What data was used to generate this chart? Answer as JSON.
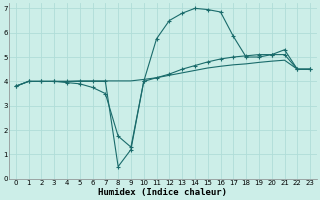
{
  "xlabel": "Humidex (Indice chaleur)",
  "bg_color": "#cceee8",
  "grid_color": "#b0ddd8",
  "line_color": "#1a6b6b",
  "xlim": [
    -0.5,
    23.5
  ],
  "ylim": [
    0,
    7.2
  ],
  "xticks": [
    0,
    1,
    2,
    3,
    4,
    5,
    6,
    7,
    8,
    9,
    10,
    11,
    12,
    13,
    14,
    15,
    16,
    17,
    18,
    19,
    20,
    21,
    22,
    23
  ],
  "yticks": [
    0,
    1,
    2,
    3,
    4,
    5,
    6,
    7
  ],
  "curve1_x": [
    0,
    1,
    2,
    3,
    4,
    5,
    6,
    7,
    8,
    9,
    10,
    11,
    12,
    13,
    14,
    15,
    16,
    17,
    18,
    19,
    20,
    21,
    22,
    23
  ],
  "curve1_y": [
    3.8,
    4.0,
    4.0,
    4.0,
    3.95,
    3.9,
    3.75,
    3.5,
    1.75,
    1.3,
    4.0,
    5.75,
    6.5,
    6.8,
    7.0,
    6.95,
    6.85,
    5.85,
    5.0,
    5.0,
    5.1,
    5.3,
    4.5,
    4.5
  ],
  "curve2_x": [
    0,
    1,
    2,
    3,
    4,
    5,
    6,
    7,
    8,
    9,
    10,
    11,
    12,
    13,
    14,
    15,
    16,
    17,
    18,
    19,
    20,
    21,
    22,
    23
  ],
  "curve2_y": [
    3.8,
    4.0,
    4.0,
    4.0,
    4.0,
    4.0,
    4.0,
    4.0,
    0.5,
    1.2,
    4.0,
    4.15,
    4.3,
    4.5,
    4.65,
    4.8,
    4.92,
    5.0,
    5.05,
    5.1,
    5.1,
    5.1,
    4.5,
    4.5
  ],
  "curve3_x": [
    0,
    1,
    2,
    3,
    4,
    5,
    6,
    7,
    8,
    9,
    10,
    11,
    12,
    13,
    14,
    15,
    16,
    17,
    18,
    19,
    20,
    21,
    22,
    23
  ],
  "curve3_y": [
    3.8,
    4.0,
    4.0,
    4.0,
    4.0,
    4.02,
    4.02,
    4.02,
    4.02,
    4.02,
    4.08,
    4.15,
    4.25,
    4.35,
    4.45,
    4.55,
    4.62,
    4.68,
    4.72,
    4.78,
    4.83,
    4.87,
    4.5,
    4.5
  ]
}
